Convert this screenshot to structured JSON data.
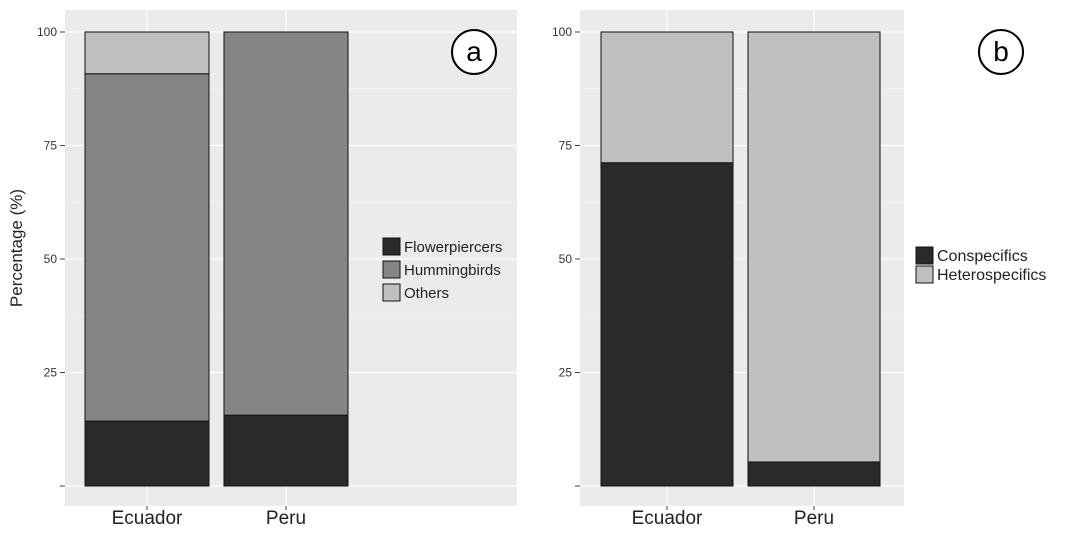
{
  "chart_data": [
    {
      "panel_label": "a",
      "type": "bar",
      "stacked": true,
      "categories": [
        "Ecuador",
        "Peru"
      ],
      "series": [
        {
          "name": "Flowerpiercers",
          "color": "#2a2a2a",
          "values": [
            14.3,
            15.6
          ]
        },
        {
          "name": "Hummingbirds",
          "color": "#858585",
          "values": [
            76.5,
            84.4
          ]
        },
        {
          "name": "Others",
          "color": "#c0c0c0",
          "values": [
            9.2,
            0
          ]
        }
      ],
      "ylabel": "Percentage (%)",
      "ylim": [
        0,
        100
      ],
      "yticks": [
        100,
        75,
        50,
        25
      ],
      "grid": true,
      "legend_position": "right"
    },
    {
      "panel_label": "b",
      "type": "bar",
      "stacked": true,
      "categories": [
        "Ecuador",
        "Peru"
      ],
      "series": [
        {
          "name": "Conspecifics",
          "color": "#2a2a2a",
          "values": [
            71.2,
            5.3
          ]
        },
        {
          "name": "Heterospecifics",
          "color": "#c0c0c0",
          "values": [
            28.8,
            94.7
          ]
        }
      ],
      "ylabel": "",
      "ylim": [
        0,
        100
      ],
      "yticks": [
        100,
        75,
        50,
        25
      ],
      "grid": true,
      "legend_position": "right"
    }
  ]
}
